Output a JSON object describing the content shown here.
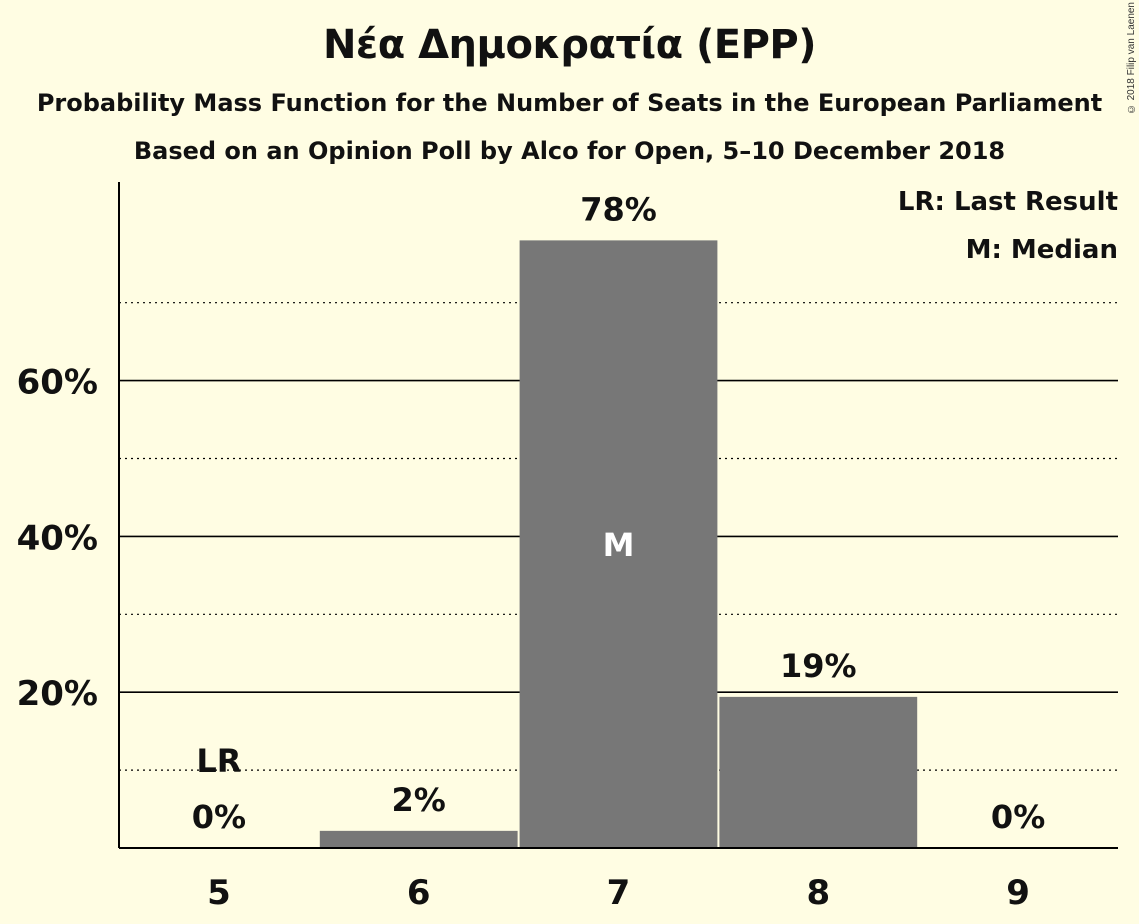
{
  "title": "Νέα Δημοκρατία (EPP)",
  "subtitle": "Probability Mass Function for the Number of Seats in the European Parliament",
  "subtitle2": "Based on an Opinion Poll by Alco for Open, 5–10 December 2018",
  "copyright": "© 2018 Filip van Laenen",
  "legend": [
    "LR: Last Result",
    "M: Median"
  ],
  "colors": {
    "background": "#fffde3",
    "bar": "#777777",
    "text": "#111111"
  },
  "chart_data": {
    "type": "bar",
    "categories": [
      "5",
      "6",
      "7",
      "8",
      "9"
    ],
    "values": [
      0,
      2.2,
      78,
      19.4,
      0
    ],
    "value_labels": [
      "0%",
      "2%",
      "78%",
      "19%",
      "0%"
    ],
    "ylim": [
      0,
      85
    ],
    "yticks": [
      20,
      40,
      60
    ],
    "ytick_labels": [
      "20%",
      "40%",
      "60%"
    ],
    "minor_gridlines": [
      10,
      30,
      50,
      70
    ],
    "markers": [
      {
        "category": "5",
        "label": "LR"
      },
      {
        "category": "7",
        "label": "M"
      }
    ],
    "legend_position": "top-right",
    "grid": true
  }
}
